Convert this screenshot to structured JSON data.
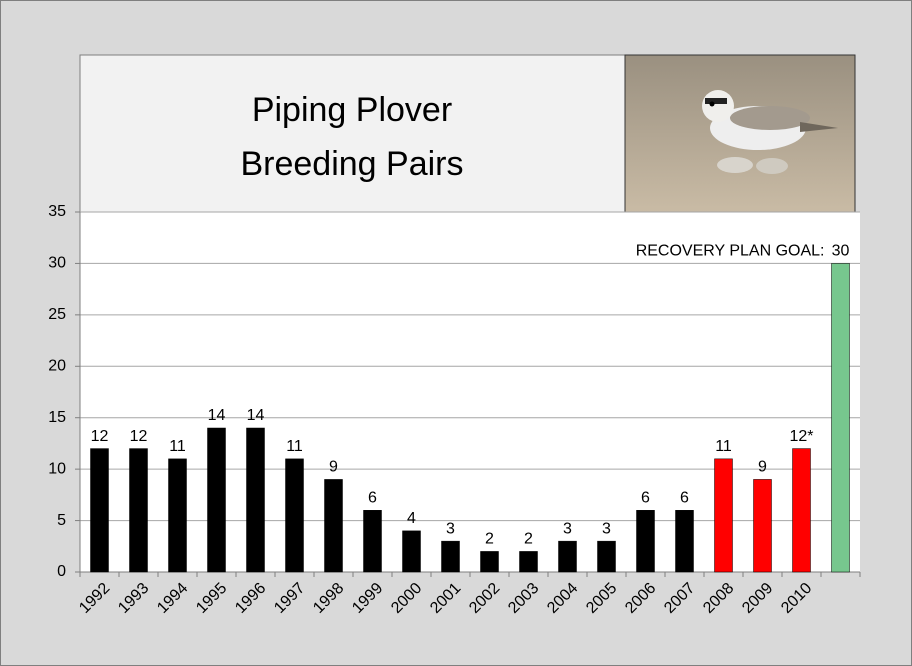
{
  "chart_data": {
    "type": "bar",
    "title": [
      "Piping Plover",
      "Breeding Pairs"
    ],
    "annotation": "RECOVERY PLAN GOAL:",
    "categories": [
      "1992",
      "1993",
      "1994",
      "1995",
      "1996",
      "1997",
      "1998",
      "1999",
      "2000",
      "2001",
      "2002",
      "2003",
      "2004",
      "2005",
      "2006",
      "2007",
      "2008",
      "2009",
      "2010",
      null
    ],
    "values": [
      12,
      12,
      11,
      14,
      14,
      11,
      9,
      6,
      4,
      3,
      2,
      2,
      3,
      3,
      6,
      6,
      11,
      9,
      12,
      30
    ],
    "value_labels": [
      "12",
      "12",
      "11",
      "14",
      "14",
      "11",
      "9",
      "6",
      "4",
      "3",
      "2",
      "2",
      "3",
      "3",
      "6",
      "6",
      "11",
      "9",
      "12*",
      "30"
    ],
    "colors": [
      "#000000",
      "#000000",
      "#000000",
      "#000000",
      "#000000",
      "#000000",
      "#000000",
      "#000000",
      "#000000",
      "#000000",
      "#000000",
      "#000000",
      "#000000",
      "#000000",
      "#000000",
      "#000000",
      "#ff0000",
      "#ff0000",
      "#ff0000",
      "#77c78e"
    ],
    "ylim": [
      0,
      35
    ],
    "yticks": [
      0,
      5,
      10,
      15,
      20,
      25,
      30,
      35
    ],
    "grid": true
  }
}
